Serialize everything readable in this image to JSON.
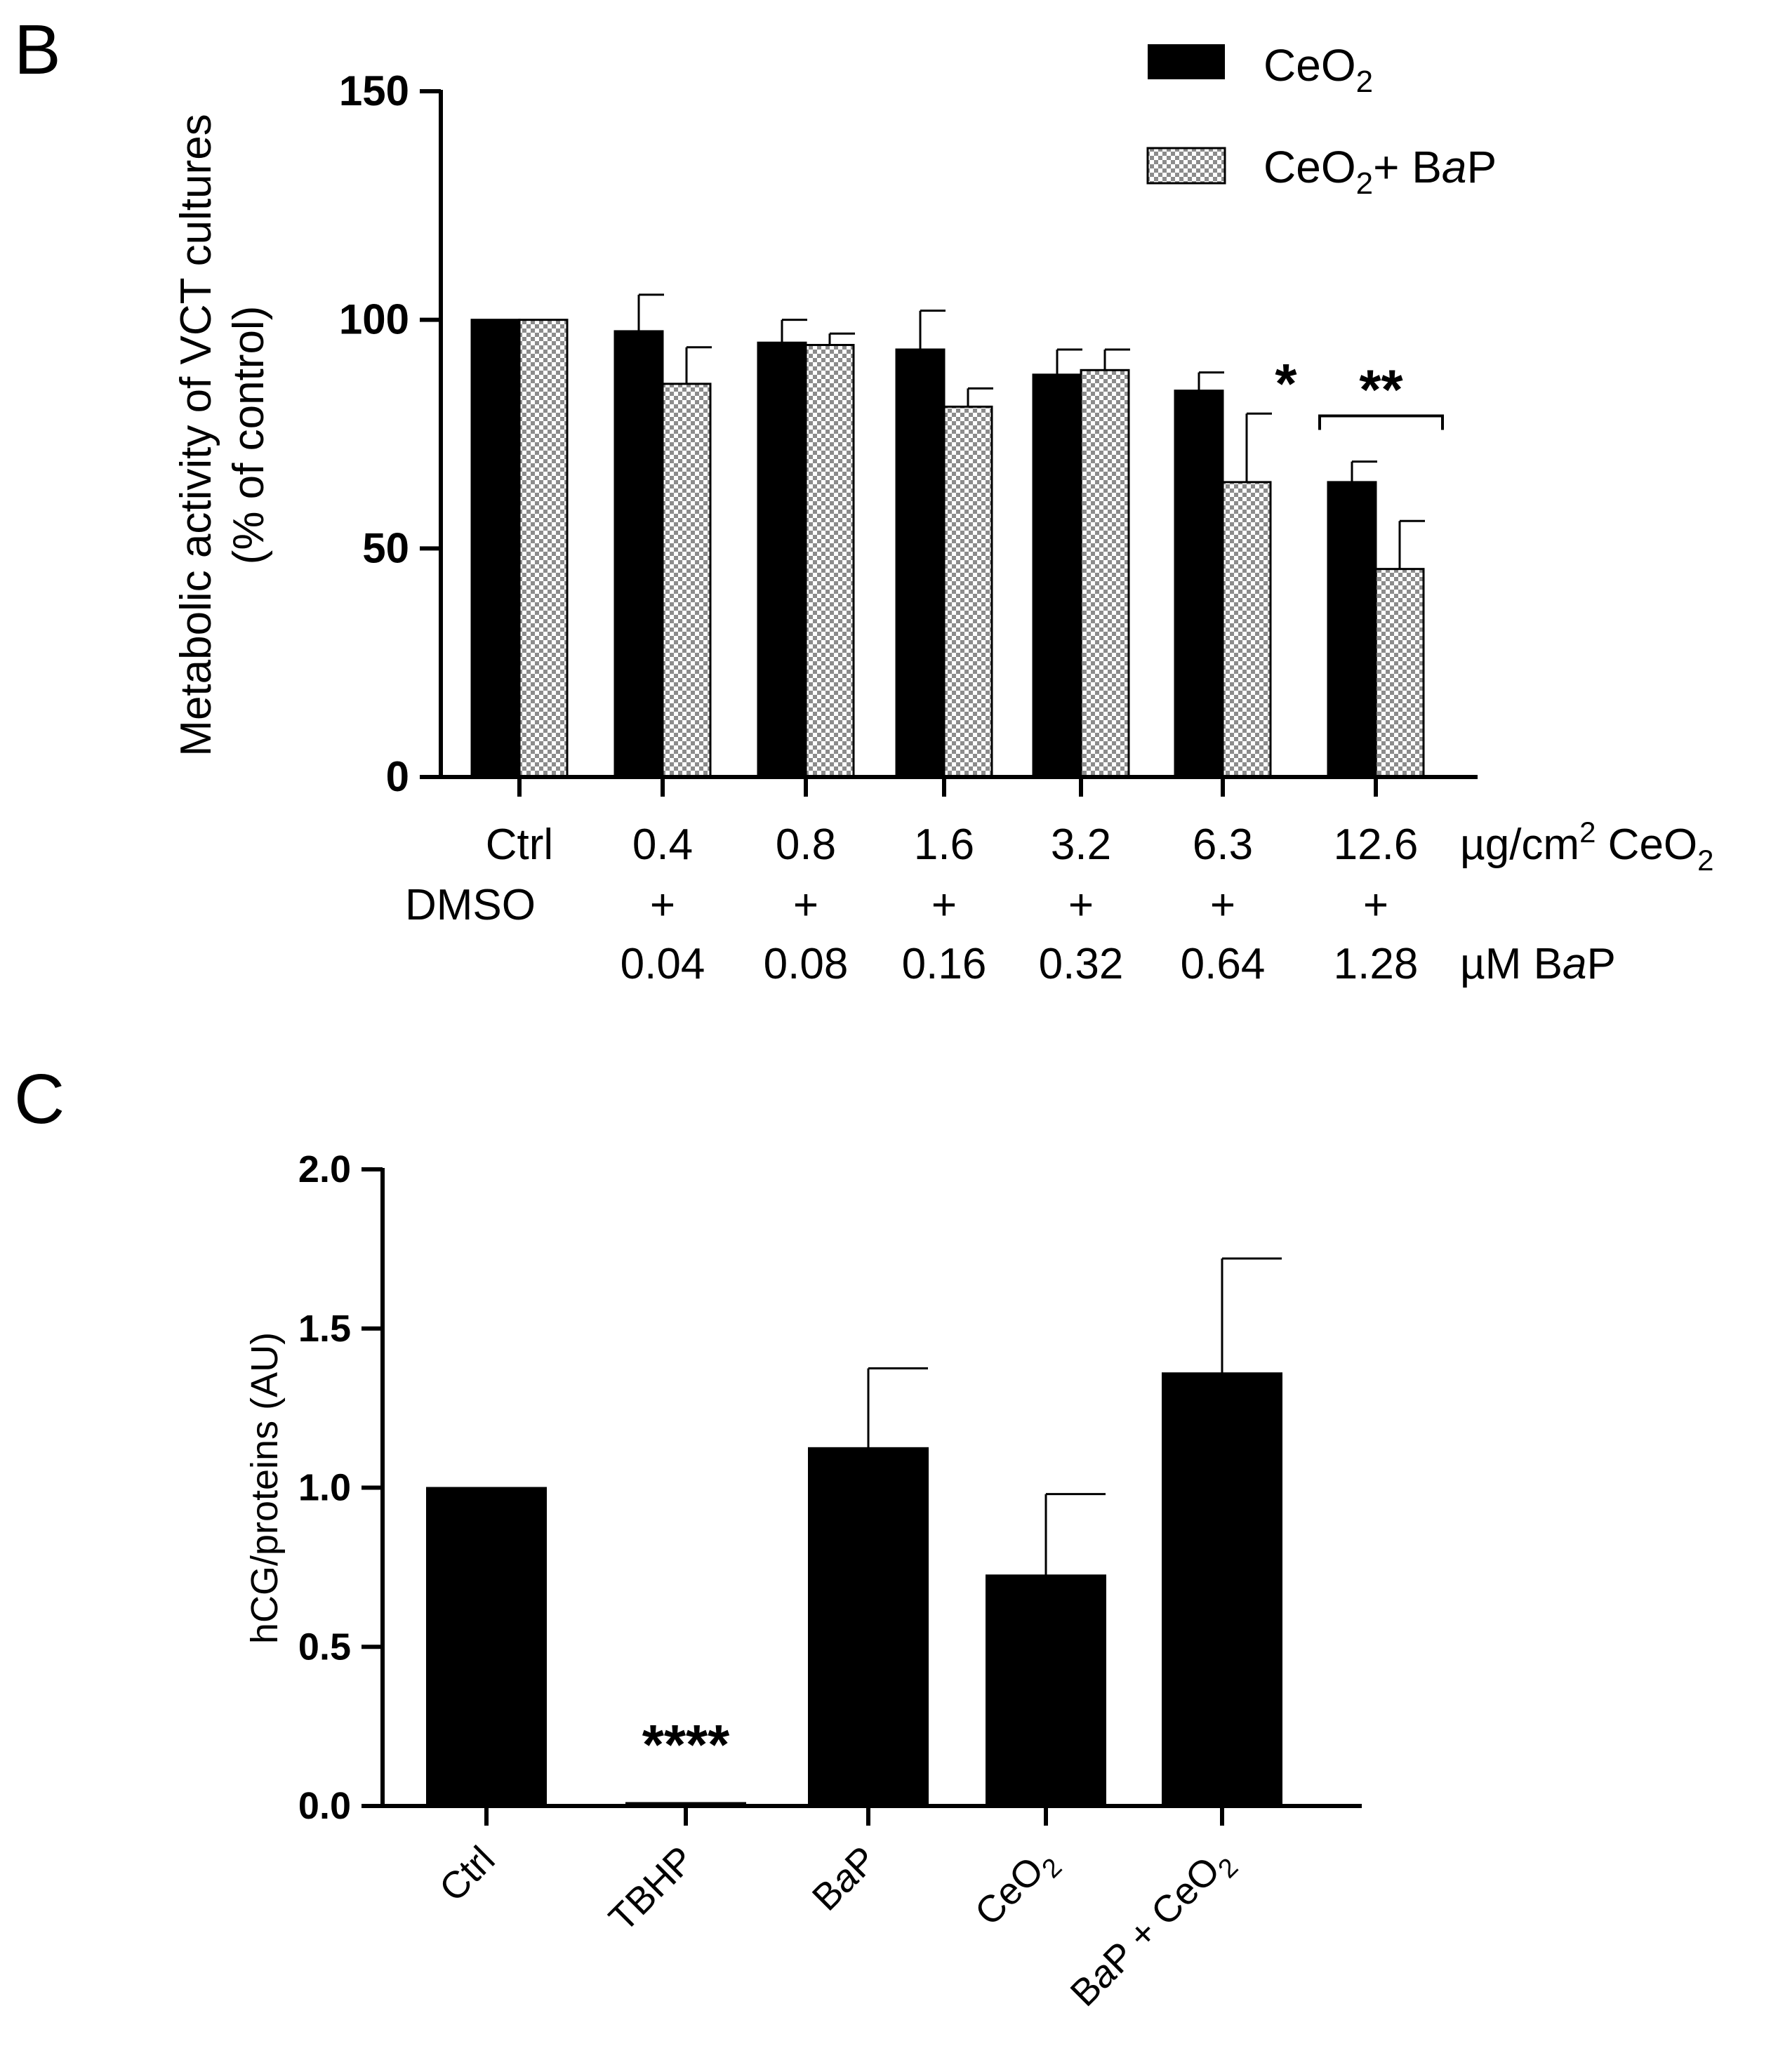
{
  "colors": {
    "bar_solid": "#000000",
    "bar_hatch_light": "#ffffff",
    "bar_hatch_dark": "#8c8c8c",
    "axis": "#000000"
  },
  "chart_data": [
    {
      "panel_label": "B",
      "type": "bar",
      "ylabel_line1": "Metabolic activity of  VCT cultures",
      "ylabel_line2": "(% of control)",
      "ylim": [
        0,
        150
      ],
      "yticks": [
        "0",
        "50",
        "100",
        "150"
      ],
      "yticks_values": [
        0,
        50,
        100,
        150
      ],
      "categories": [
        {
          "dose": "Ctrl",
          "plus": "DMSO",
          "bap": ""
        },
        {
          "dose": "0.4",
          "plus": "+",
          "bap": "0.04"
        },
        {
          "dose": "0.8",
          "plus": "+",
          "bap": "0.08"
        },
        {
          "dose": "1.6",
          "plus": "+",
          "bap": "0.16"
        },
        {
          "dose": "3.2",
          "plus": "+",
          "bap": "0.32"
        },
        {
          "dose": "6.3",
          "plus": "+",
          "bap": "0.64"
        },
        {
          "dose": "12.6",
          "plus": "+",
          "bap": "1.28"
        }
      ],
      "row_label_dose_prefix": "µg/cm",
      "row_label_dose_sup": "2",
      "row_label_dose_suffix": " CeO",
      "row_label_dose_sub": "2",
      "row_label_bap_prefix": "µM B",
      "row_label_bap_italic": "a",
      "row_label_bap_suffix": "P",
      "series": [
        {
          "name": "CeO2",
          "legend_main": "CeO",
          "legend_sub": "2",
          "legend_rest": "",
          "legend_italic": "",
          "legend_tail": "",
          "pattern": "solid",
          "values": [
            100,
            97.5,
            95,
            93.5,
            88,
            84.5,
            64.5
          ],
          "errors": [
            0,
            8,
            5,
            8.5,
            5.5,
            4,
            4.5
          ]
        },
        {
          "name": "CeO2+ BaP",
          "legend_main": "CeO",
          "legend_sub": "2",
          "legend_rest": "+ B",
          "legend_italic": "a",
          "legend_tail": "P",
          "pattern": "checker",
          "values": [
            100,
            86,
            94.5,
            81,
            89,
            64.5,
            45.5
          ],
          "errors": [
            0,
            8,
            2.5,
            4,
            4.5,
            15,
            10.5
          ]
        }
      ],
      "annotations": [
        {
          "text": "*",
          "category_index": 5,
          "series_index": 1,
          "value": 88
        },
        {
          "text": "**",
          "bracket_from": 6,
          "bracket_to": 6,
          "value": 79
        }
      ]
    },
    {
      "panel_label": "C",
      "type": "bar",
      "ylabel": "hCG/proteins (AU)",
      "ylim": [
        0,
        2.0
      ],
      "yticks": [
        "0.0",
        "0.5",
        "1.0",
        "1.5",
        "2.0"
      ],
      "yticks_values": [
        0,
        0.5,
        1.0,
        1.5,
        2.0
      ],
      "categories": [
        {
          "main": "Ctrl",
          "sub": "",
          "rest": ""
        },
        {
          "main": "TBHP",
          "sub": "",
          "rest": ""
        },
        {
          "main": "B",
          "italic": "a",
          "tail": "P",
          "sub": "",
          "rest": ""
        },
        {
          "main": "CeO",
          "sub": "2",
          "rest": ""
        },
        {
          "main": "B",
          "italic": "a",
          "tail": "P + CeO",
          "sub": "2",
          "rest": ""
        }
      ],
      "values": [
        1.0,
        0.01,
        1.125,
        0.725,
        1.36
      ],
      "errors": [
        0,
        0,
        0.25,
        0.255,
        0.36
      ],
      "annotations": [
        {
          "text": "****",
          "category_index": 1,
          "value": 0.22
        }
      ]
    }
  ]
}
